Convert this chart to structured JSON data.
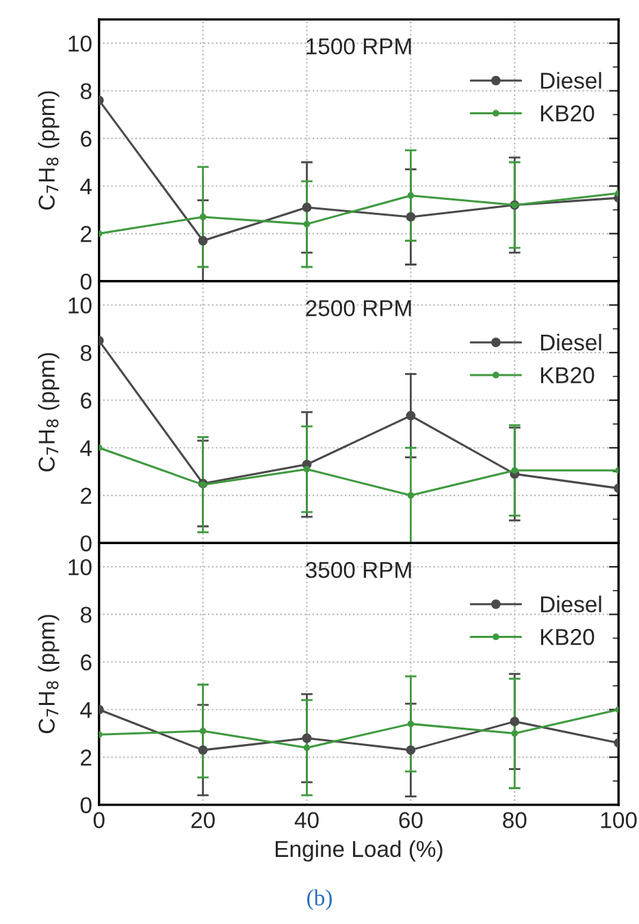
{
  "chart_data": [
    {
      "type": "line",
      "title": "1500 RPM",
      "ylabel": "C$_{7}$H$_{8}$ (ppm)",
      "x": [
        0,
        20,
        40,
        60,
        80,
        100
      ],
      "xlim": [
        0,
        100
      ],
      "xticks": [
        0,
        20,
        40,
        60,
        80,
        100
      ],
      "ylim": [
        0,
        11
      ],
      "yticks": [
        0,
        2,
        4,
        6,
        8,
        10
      ],
      "tick_labels": "y",
      "grid": true,
      "legend": "top right",
      "marker": "circle",
      "line_style": "solid",
      "series": [
        {
          "name": "Diesel",
          "color": "#4a4a4a",
          "values": [
            7.6,
            1.7,
            3.1,
            2.7,
            3.2,
            3.5
          ],
          "errors": [
            null,
            1.7,
            1.9,
            2.0,
            2.0,
            null
          ]
        },
        {
          "name": "KB20",
          "color": "#3f9a3f",
          "values": [
            2.0,
            2.7,
            2.4,
            3.6,
            3.2,
            3.7
          ],
          "errors": [
            null,
            2.1,
            1.8,
            1.9,
            1.8,
            null
          ]
        }
      ]
    },
    {
      "type": "line",
      "title": "2500 RPM",
      "ylabel": "C$_{7}$H$_{8}$ (ppm)",
      "x": [
        0,
        20,
        40,
        60,
        80,
        100
      ],
      "xlim": [
        0,
        100
      ],
      "xticks": [
        0,
        20,
        40,
        60,
        80,
        100
      ],
      "ylim": [
        0,
        11
      ],
      "yticks": [
        0,
        2,
        4,
        6,
        8,
        10
      ],
      "tick_labels": "y",
      "grid": true,
      "legend": "top right",
      "marker": "circle",
      "line_style": "solid",
      "series": [
        {
          "name": "Diesel",
          "color": "#4a4a4a",
          "values": [
            8.5,
            2.5,
            3.3,
            5.35,
            2.9,
            2.3
          ],
          "errors": [
            null,
            1.8,
            2.2,
            1.75,
            1.95,
            null
          ]
        },
        {
          "name": "KB20",
          "color": "#3f9a3f",
          "values": [
            4.0,
            2.45,
            3.1,
            2.0,
            3.05,
            3.05
          ],
          "errors": [
            null,
            2.0,
            1.8,
            2.0,
            1.9,
            null
          ]
        }
      ]
    },
    {
      "type": "line",
      "title": "3500 RPM",
      "xlabel": "Engine Load (%)",
      "ylabel": "C$_{7}$H$_{8}$ (ppm)",
      "x": [
        0,
        20,
        40,
        60,
        80,
        100
      ],
      "xlim": [
        0,
        100
      ],
      "xticks": [
        0,
        20,
        40,
        60,
        80,
        100
      ],
      "ylim": [
        0,
        11
      ],
      "yticks": [
        0,
        2,
        4,
        6,
        8,
        10
      ],
      "grid": true,
      "legend": "top right",
      "marker": "circle",
      "line_style": "solid",
      "annotations": [
        "(b)"
      ],
      "series": [
        {
          "name": "Diesel",
          "color": "#4a4a4a",
          "values": [
            4.0,
            2.3,
            2.8,
            2.3,
            3.5,
            2.6
          ],
          "errors": [
            null,
            1.9,
            1.85,
            1.95,
            2.0,
            null
          ]
        },
        {
          "name": "KB20",
          "color": "#3f9a3f",
          "values": [
            2.95,
            3.1,
            2.4,
            3.4,
            3.0,
            4.0
          ],
          "errors": [
            null,
            1.95,
            2.0,
            2.0,
            2.3,
            null
          ]
        }
      ]
    }
  ]
}
